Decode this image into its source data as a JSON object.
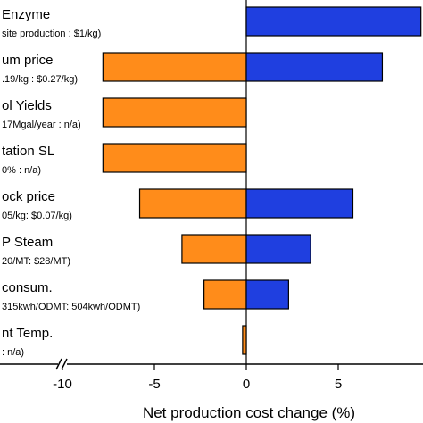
{
  "chart_data": {
    "type": "bar",
    "orientation": "horizontal",
    "xlabel": "Net production cost change (%)",
    "ylabel": "",
    "xlim": [
      -12.5,
      9.5
    ],
    "xticks": [
      -10,
      -5,
      0,
      5
    ],
    "axis_break": "between -12 and -10",
    "grid": false,
    "colors": {
      "negative": "#FF8C1A",
      "positive": "#1F3FE0",
      "edge": "#000000"
    },
    "categories": [
      {
        "label": "Enzyme",
        "sub": "site production : $1/kg)",
        "low": 0,
        "high": 9.5
      },
      {
        "label": "um price",
        "sub": ".19/kg : $0.27/kg)",
        "low": -7.8,
        "high": 7.4
      },
      {
        "label": "ol Yields",
        "sub": "17Mgal/year : n/a)",
        "low": -7.8,
        "high": 0
      },
      {
        "label": "tation SL",
        "sub": "0% : n/a)",
        "low": -7.8,
        "high": 0
      },
      {
        "label": "ock price",
        "sub": "05/kg: $0.07/kg)",
        "low": -5.8,
        "high": 5.8
      },
      {
        "label": "P Steam",
        "sub": "20/MT: $28/MT)",
        "low": -3.5,
        "high": 3.5
      },
      {
        "label": "consum.",
        "sub": "315kwh/ODMT: 504kwh/ODMT)",
        "low": -2.3,
        "high": 2.3
      },
      {
        "label": "nt Temp.",
        "sub": ": n/a)",
        "low": -0.2,
        "high": 0
      }
    ]
  }
}
